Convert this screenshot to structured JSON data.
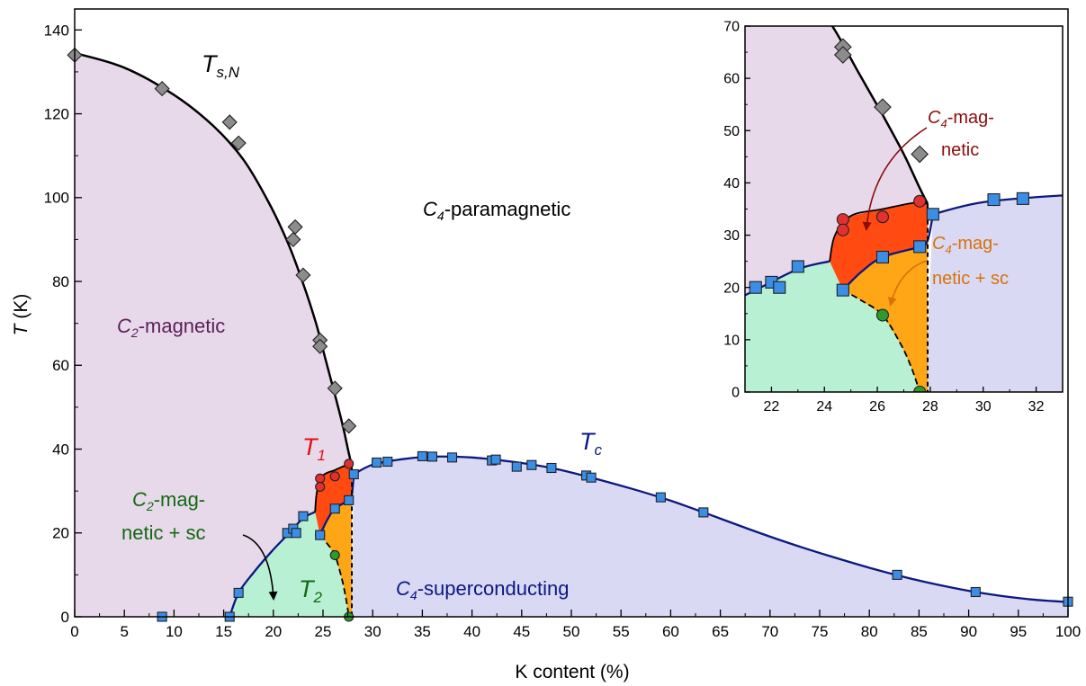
{
  "chart_data": [
    {
      "id": "main",
      "type": "scatter",
      "xlabel": "K content (%)",
      "ylabel": {
        "symbol": "T",
        "unit": " (K)"
      },
      "xlim": [
        0,
        100
      ],
      "ylim": [
        0,
        145
      ],
      "xticks": [
        0,
        5,
        10,
        15,
        20,
        25,
        30,
        35,
        40,
        45,
        50,
        55,
        60,
        65,
        70,
        75,
        80,
        85,
        90,
        95,
        100
      ],
      "yticks": [
        0,
        20,
        40,
        60,
        80,
        100,
        120,
        140
      ],
      "grid": false,
      "labels": {
        "tsn": {
          "main": "T",
          "sub": "s,N"
        },
        "t1": {
          "main": "T",
          "sub": "1"
        },
        "t2": {
          "main": "T",
          "sub": "2"
        },
        "tc": {
          "main": "T",
          "sub": "c"
        },
        "c4_para": {
          "main": "C",
          "sub": "4",
          "rest": "-paramagnetic"
        },
        "c2_mag": {
          "main": "C",
          "sub": "2",
          "rest": "-magnetic"
        },
        "c4_sc": {
          "main": "C",
          "sub": "4",
          "rest": "-superconducting"
        },
        "c2_magsc_1": {
          "main": "C",
          "sub": "2",
          "rest": "-mag-"
        },
        "c2_magsc_2": "netic + sc"
      },
      "series": [
        {
          "name": "T_s,N",
          "marker": "diamond",
          "color": "#8c8c8c",
          "points": [
            [
              0,
              134
            ],
            [
              8.8,
              126
            ],
            [
              15.6,
              118
            ],
            [
              16.5,
              113
            ],
            [
              22.2,
              93
            ],
            [
              22,
              90
            ],
            [
              23,
              81.5
            ],
            [
              24.7,
              66
            ],
            [
              24.7,
              64.5
            ],
            [
              26.2,
              54.5
            ],
            [
              27.6,
              45.5
            ]
          ]
        },
        {
          "name": "T_1",
          "marker": "circle",
          "color": "#e03030",
          "points": [
            [
              24.7,
              33
            ],
            [
              24.7,
              31
            ],
            [
              26.2,
              33.5
            ],
            [
              27.6,
              36.5
            ]
          ]
        },
        {
          "name": "T_2",
          "marker": "circle",
          "color": "#2e9a2e",
          "points": [
            [
              24.7,
              19.5
            ],
            [
              26.2,
              14.7
            ],
            [
              27.6,
              0
            ]
          ]
        },
        {
          "name": "T_c",
          "marker": "square",
          "color": "#3a8ee6",
          "points": [
            [
              8.8,
              0
            ],
            [
              15.6,
              0
            ],
            [
              16.5,
              5.7
            ],
            [
              21.4,
              20
            ],
            [
              22,
              21
            ],
            [
              22.3,
              20
            ],
            [
              23,
              24
            ],
            [
              24.7,
              19.5
            ],
            [
              26.2,
              25.8
            ],
            [
              27.6,
              27.8
            ],
            [
              28.1,
              34
            ],
            [
              30.4,
              36.8
            ],
            [
              31.5,
              37
            ],
            [
              35,
              38.3
            ],
            [
              36,
              38.2
            ],
            [
              38,
              38
            ],
            [
              42,
              37.3
            ],
            [
              42.4,
              37.5
            ],
            [
              44.5,
              35.8
            ],
            [
              46,
              36.2
            ],
            [
              48,
              35.5
            ],
            [
              51.5,
              33.7
            ],
            [
              52,
              33.2
            ],
            [
              59,
              28.5
            ],
            [
              63.3,
              24.9
            ],
            [
              82.8,
              10
            ],
            [
              90.7,
              5.9
            ],
            [
              100,
              3.6
            ]
          ]
        }
      ]
    },
    {
      "id": "inset",
      "type": "scatter",
      "xlim": [
        21,
        33
      ],
      "ylim": [
        0,
        70
      ],
      "xticks": [
        22,
        24,
        26,
        28,
        30,
        32
      ],
      "yticks": [
        0,
        10,
        20,
        30,
        40,
        50,
        60,
        70
      ],
      "grid": false,
      "labels": {
        "c4_mag_1": {
          "main": "C",
          "sub": "4",
          "rest": "-mag-"
        },
        "c4_mag_2": "netic",
        "c4_magsc_1": {
          "main": "C",
          "sub": "4",
          "rest": "-mag-"
        },
        "c4_magsc_2": "netic + sc"
      },
      "series": [
        {
          "name": "T_s,N",
          "marker": "diamond",
          "color": "#8c8c8c",
          "points": [
            [
              24.7,
              66
            ],
            [
              24.7,
              64.5
            ],
            [
              26.2,
              54.5
            ],
            [
              27.6,
              45.5
            ]
          ]
        },
        {
          "name": "T_1",
          "marker": "circle",
          "color": "#e03030",
          "points": [
            [
              24.7,
              33
            ],
            [
              24.7,
              31
            ],
            [
              26.2,
              33.5
            ],
            [
              27.6,
              36.5
            ]
          ]
        },
        {
          "name": "T_2",
          "marker": "circle",
          "color": "#2e9a2e",
          "points": [
            [
              24.7,
              19.5
            ],
            [
              26.2,
              14.7
            ],
            [
              27.6,
              0
            ]
          ]
        },
        {
          "name": "T_c",
          "marker": "square",
          "color": "#3a8ee6",
          "points": [
            [
              21.4,
              20
            ],
            [
              22,
              21
            ],
            [
              22.3,
              20
            ],
            [
              23,
              24
            ],
            [
              24.7,
              19.5
            ],
            [
              26.2,
              25.8
            ],
            [
              27.6,
              27.8
            ],
            [
              28.1,
              34
            ],
            [
              30.4,
              36.8
            ],
            [
              31.5,
              37
            ]
          ]
        }
      ]
    }
  ],
  "colors": {
    "c2_magnetic": "#e8d9ea",
    "c4_superconducting": "#d9d9f4",
    "c2_magnetic_sc": "#b8f0d4",
    "c4_magnetic": "#ff4a12",
    "c4_magnetic_sc": "#ffa617",
    "tsn_line": "#000000",
    "tc_line": "#0c1880",
    "t1_label": "#e01010",
    "t2_label": "#126a12",
    "c2_mag_label": "#5a1e5a",
    "c2_magsc_label": "#126a12",
    "c4_mag_label": "#8c0c0c",
    "c4_magsc_label": "#d8720a",
    "tc_label": "#0c1880"
  }
}
